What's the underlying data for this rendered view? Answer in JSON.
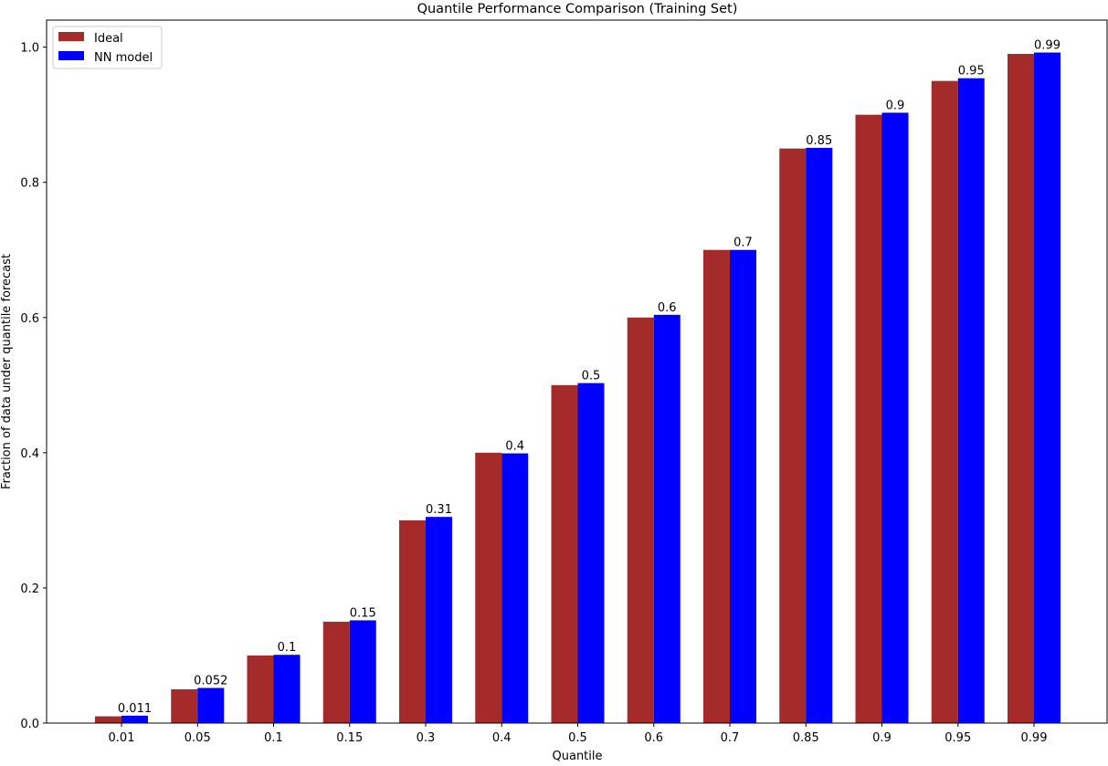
{
  "chart_data": {
    "type": "bar",
    "title": "Quantile Performance Comparison (Training Set)",
    "xlabel": "Quantile",
    "ylabel": "Fraction of data under quantile forecast",
    "ylim": [
      0,
      1.04
    ],
    "yticks": [
      "0.0",
      "0.2",
      "0.4",
      "0.6",
      "0.8",
      "1.0"
    ],
    "ytick_values": [
      0,
      0.2,
      0.4,
      0.6,
      0.8,
      1.0
    ],
    "grid": false,
    "legend_position": "top-left",
    "categories": [
      "0.01",
      "0.05",
      "0.1",
      "0.15",
      "0.3",
      "0.4",
      "0.5",
      "0.6",
      "0.7",
      "0.85",
      "0.9",
      "0.95",
      "0.99"
    ],
    "series": [
      {
        "name": "Ideal",
        "color": "#a52a2a",
        "values": [
          0.01,
          0.05,
          0.1,
          0.15,
          0.3,
          0.4,
          0.5,
          0.6,
          0.7,
          0.85,
          0.9,
          0.95,
          0.99
        ]
      },
      {
        "name": "NN model",
        "color": "#0000ff",
        "values": [
          0.011,
          0.052,
          0.101,
          0.152,
          0.305,
          0.399,
          0.503,
          0.604,
          0.7,
          0.851,
          0.903,
          0.954,
          0.992
        ],
        "data_labels": [
          "0.011",
          "0.052",
          "0.1",
          "0.15",
          "0.31",
          "0.4",
          "0.5",
          "0.6",
          "0.7",
          "0.85",
          "0.9",
          "0.95",
          "0.99"
        ]
      }
    ]
  }
}
